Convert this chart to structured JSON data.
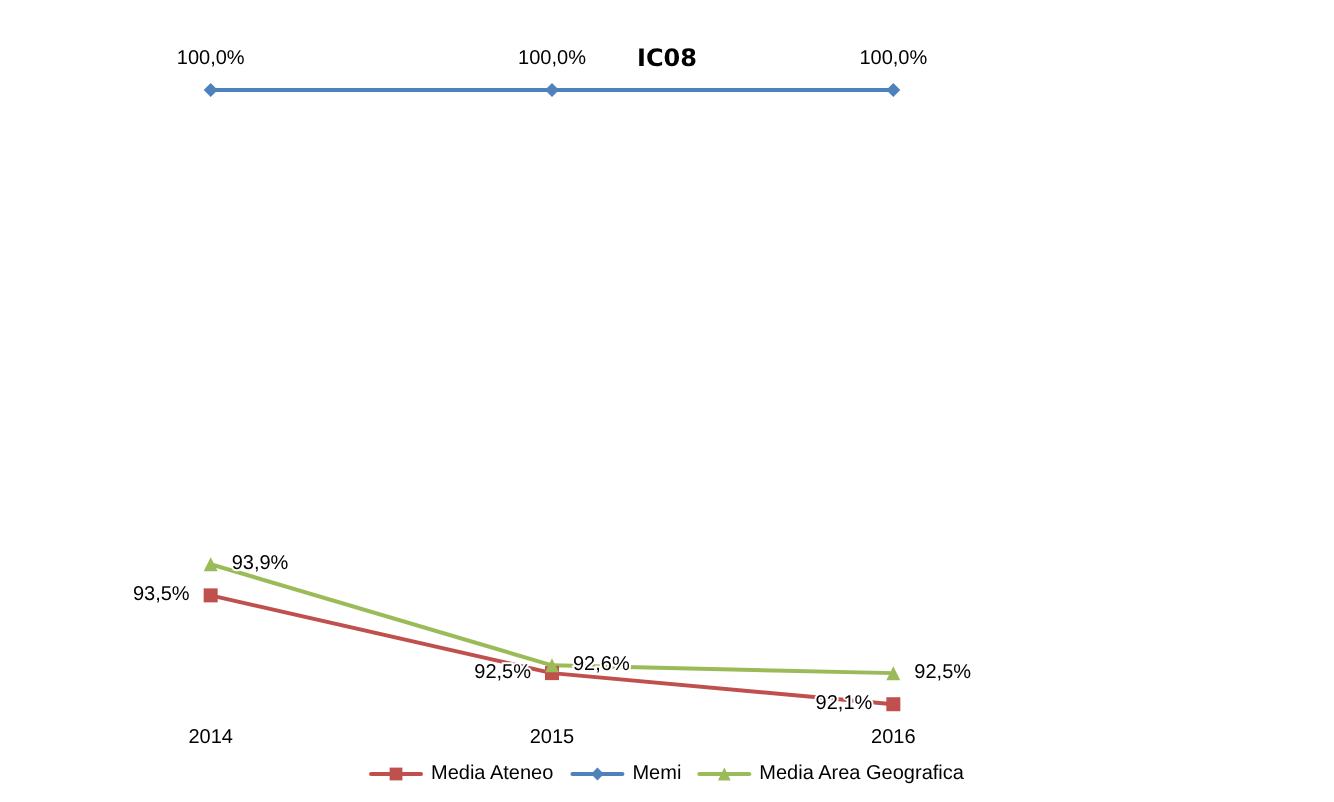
{
  "chart_data": {
    "type": "line",
    "title": "IC08",
    "categories": [
      "2014",
      "2015",
      "2016"
    ],
    "series": [
      {
        "name": "Media Ateneo",
        "color": "#c0504d",
        "marker": "square",
        "values": [
          93.5,
          92.5,
          92.1
        ],
        "value_labels": [
          "93,5%",
          "92,5%",
          "92,1%"
        ]
      },
      {
        "name": "Memi",
        "color": "#4f81bd",
        "marker": "diamond",
        "values": [
          100.0,
          100.0,
          100.0
        ],
        "value_labels": [
          "100,0%",
          "100,0%",
          "100,0%"
        ]
      },
      {
        "name": "Media Area Geografica",
        "color": "#9bbb59",
        "marker": "triangle",
        "values": [
          93.9,
          92.6,
          92.5
        ],
        "value_labels": [
          "93,9%",
          "92,6%",
          "92,5%"
        ]
      }
    ],
    "grid": false,
    "legend": "bottom"
  }
}
